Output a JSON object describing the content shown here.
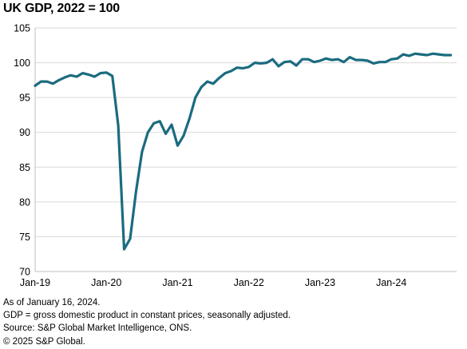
{
  "title": "UK GDP, 2022 = 100",
  "notes": [
    "As of  January 16, 2024.",
    "GDP = gross domestic product in constant prices, seasonally adjusted.",
    "Source: S&P Global Market Intelligence, ONS.",
    "© 2025 S&P Global."
  ],
  "chart_data": {
    "type": "line",
    "title": "UK GDP, 2022 = 100",
    "xlabel": "",
    "ylabel": "",
    "ylim": [
      70,
      105
    ],
    "yticks": [
      70,
      75,
      80,
      85,
      90,
      95,
      100,
      105
    ],
    "xlim": [
      "2019-01",
      "2024-12"
    ],
    "xticks": [
      {
        "date": "2019-01",
        "label": "Jan-19"
      },
      {
        "date": "2020-01",
        "label": "Jan-20"
      },
      {
        "date": "2021-01",
        "label": "Jan-21"
      },
      {
        "date": "2022-01",
        "label": "Jan-22"
      },
      {
        "date": "2023-01",
        "label": "Jan-23"
      },
      {
        "date": "2024-01",
        "label": "Jan-24"
      }
    ],
    "grid": "horizontal",
    "legend": "none",
    "line_color": "#1b6b80",
    "series": [
      {
        "name": "",
        "x": [
          "2019-01",
          "2019-02",
          "2019-03",
          "2019-04",
          "2019-05",
          "2019-06",
          "2019-07",
          "2019-08",
          "2019-09",
          "2019-10",
          "2019-11",
          "2019-12",
          "2020-01",
          "2020-02",
          "2020-03",
          "2020-04",
          "2020-05",
          "2020-06",
          "2020-07",
          "2020-08",
          "2020-09",
          "2020-10",
          "2020-11",
          "2020-12",
          "2021-01",
          "2021-02",
          "2021-03",
          "2021-04",
          "2021-05",
          "2021-06",
          "2021-07",
          "2021-08",
          "2021-09",
          "2021-10",
          "2021-11",
          "2021-12",
          "2022-01",
          "2022-02",
          "2022-03",
          "2022-04",
          "2022-05",
          "2022-06",
          "2022-07",
          "2022-08",
          "2022-09",
          "2022-10",
          "2022-11",
          "2022-12",
          "2023-01",
          "2023-02",
          "2023-03",
          "2023-04",
          "2023-05",
          "2023-06",
          "2023-07",
          "2023-08",
          "2023-09",
          "2023-10",
          "2023-11",
          "2023-12",
          "2024-01",
          "2024-02",
          "2024-03",
          "2024-04",
          "2024-05",
          "2024-06",
          "2024-07",
          "2024-08",
          "2024-09",
          "2024-10",
          "2024-11"
        ],
        "values": [
          96.7,
          97.3,
          97.3,
          97.0,
          97.5,
          97.9,
          98.2,
          98.0,
          98.5,
          98.3,
          98.0,
          98.5,
          98.6,
          98.1,
          91.0,
          73.2,
          74.7,
          81.5,
          87.2,
          90.0,
          91.3,
          91.6,
          89.8,
          91.1,
          88.1,
          89.5,
          92.0,
          95.0,
          96.5,
          97.3,
          97.0,
          97.8,
          98.5,
          98.8,
          99.3,
          99.2,
          99.4,
          100.0,
          99.9,
          100.0,
          100.5,
          99.5,
          100.1,
          100.2,
          99.6,
          100.5,
          100.5,
          100.1,
          100.3,
          100.6,
          100.4,
          100.5,
          100.1,
          100.8,
          100.4,
          100.4,
          100.3,
          99.9,
          100.1,
          100.1,
          100.5,
          100.6,
          101.2,
          101.0,
          101.3,
          101.2,
          101.1,
          101.3,
          101.2,
          101.1,
          101.1
        ]
      }
    ]
  }
}
